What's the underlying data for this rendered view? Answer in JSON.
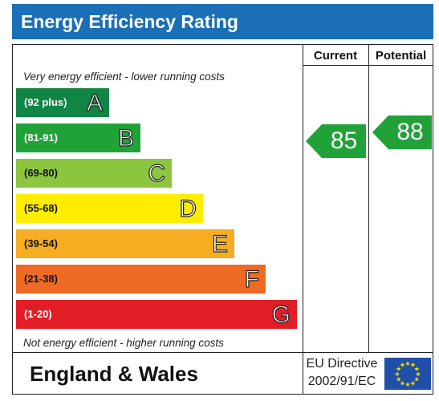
{
  "title": "Energy Efficiency Rating",
  "columns": {
    "current": "Current",
    "potential": "Potential"
  },
  "top_note": "Very energy efficient - lower running costs",
  "bottom_note": "Not energy efficient - higher running costs",
  "bands": [
    {
      "range": "(92 plus)",
      "letter": "A",
      "color": "#118543",
      "range_color": "#ffffff"
    },
    {
      "range": "(81-91)",
      "letter": "B",
      "color": "#21a239",
      "range_color": "#ffffff"
    },
    {
      "range": "(69-80)",
      "letter": "C",
      "color": "#8cc63f",
      "range_color": "#111111"
    },
    {
      "range": "(55-68)",
      "letter": "D",
      "color": "#ffed00",
      "range_color": "#111111"
    },
    {
      "range": "(39-54)",
      "letter": "E",
      "color": "#f7ad22",
      "range_color": "#111111"
    },
    {
      "range": "(21-38)",
      "letter": "F",
      "color": "#ee6a24",
      "range_color": "#111111"
    },
    {
      "range": "(1-20)",
      "letter": "G",
      "color": "#e21d25",
      "range_color": "#ffffff"
    }
  ],
  "ratings": {
    "current": {
      "value": "85",
      "band": "B",
      "color": "#21a239"
    },
    "potential": {
      "value": "88",
      "band": "B",
      "color": "#21a239"
    }
  },
  "footer": {
    "region": "England & Wales",
    "directive_line1": "EU Directive",
    "directive_line2": "2002/91/EC"
  },
  "colors": {
    "header": "#1a6fb7",
    "eu_blue": "#1f4fa8",
    "eu_star": "#ffdd00"
  }
}
